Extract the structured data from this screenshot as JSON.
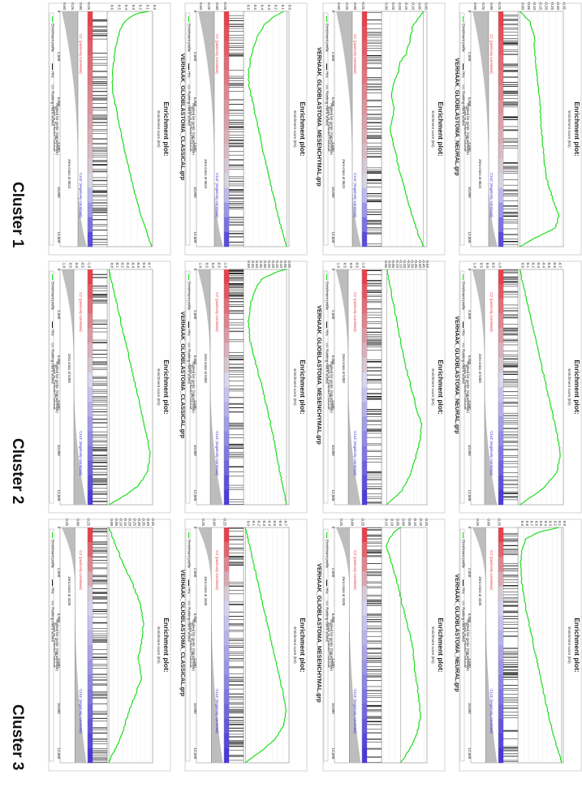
{
  "rows": [
    {
      "label": "Cluster 1"
    },
    {
      "label": "Cluster 2"
    },
    {
      "label": "Cluster 3"
    }
  ],
  "common": {
    "title_line1": "Enrichment plot:",
    "es_ylabel": "Enrichment score (ES)",
    "rank_ylabel": "Ranked list metric (Signal2Noise)",
    "xlabel": "Rank in Ordered Dataset",
    "legend_profile": "Enrichment profile",
    "legend_hits": "Hits",
    "legend_metric": "Ranking metric scores",
    "pos_label_c1": "'C1' (positively correlated)",
    "neg_label_c1": "'C1s2' (negatively correlated)",
    "pos_label_c2": "'C2' (positively correlated)",
    "neg_label_c2": "'C1s3' (negatively correlated)",
    "pos_label_c3": "'C3' (positively correlated)",
    "neg_label_c3": "'C1s3' (negatively correlated)",
    "xticks_c1": [
      "0",
      "2,500",
      "5,000",
      "7,500",
      "10,000",
      "12,500"
    ],
    "xticks_c2": [
      "0",
      "2,500",
      "5,000",
      "7,500",
      "10,000",
      "12,500"
    ],
    "xticks_c3": [
      "0",
      "2,500",
      "5,000",
      "7,500",
      "10,000",
      "12,500"
    ],
    "colors": {
      "curve": "#22dd22",
      "pos": "#e8404a",
      "neg": "#3a2fd8",
      "metric_fill": "#bdbdbd"
    }
  },
  "chart_data": [
    {
      "type": "line",
      "row": 0,
      "col": 0,
      "title": "VERHAAK_GLIOBLASTOMA_CLASSICAL.grp",
      "zero_cross": "Zero cross at 8623",
      "es_ticks": [
        "0.0",
        "0.1",
        "0.2",
        "0.3",
        "0.4",
        "0.5",
        "0.6"
      ],
      "es_range": [
        0,
        0.62
      ],
      "es_points": [
        [
          0,
          0.05
        ],
        [
          0.01,
          0.22
        ],
        [
          0.04,
          0.38
        ],
        [
          0.08,
          0.45
        ],
        [
          0.15,
          0.51
        ],
        [
          0.25,
          0.55
        ],
        [
          0.33,
          0.56
        ],
        [
          0.45,
          0.48
        ],
        [
          0.6,
          0.38
        ],
        [
          0.75,
          0.26
        ],
        [
          0.88,
          0.14
        ],
        [
          1,
          0
        ]
      ],
      "rank_ticks": [
        "-0.25",
        "0.00",
        "0.25",
        "0.50"
      ],
      "rank_range": [
        -0.3,
        0.55
      ],
      "zero_frac": 0.69
    },
    {
      "type": "line",
      "row": 0,
      "col": 1,
      "title": "VERHAAK_GLIOBLASTOMA_MESENCHYMAL.grp",
      "zero_cross": "Zero cross at 8623",
      "es_ticks": [
        "0.0",
        "0.1",
        "0.2",
        "0.3",
        "0.4",
        "0.5",
        "0.6"
      ],
      "es_range": [
        -0.02,
        0.62
      ],
      "es_points": [
        [
          0,
          0.05
        ],
        [
          0.02,
          0.18
        ],
        [
          0.06,
          0.34
        ],
        [
          0.12,
          0.45
        ],
        [
          0.2,
          0.53
        ],
        [
          0.26,
          0.56
        ],
        [
          0.32,
          0.55
        ],
        [
          0.45,
          0.45
        ],
        [
          0.6,
          0.34
        ],
        [
          0.78,
          0.2
        ],
        [
          0.9,
          0.1
        ],
        [
          1,
          0
        ]
      ],
      "rank_ticks": [
        "-0.25",
        "0.00",
        "0.25",
        "0.50"
      ],
      "rank_range": [
        -0.3,
        0.55
      ],
      "zero_frac": 0.69
    },
    {
      "type": "line",
      "row": 0,
      "col": 2,
      "title": "VERHAAK_GLIOBLASTOMA_NEURAL.grp",
      "zero_cross": "Zero cross at 8623",
      "es_ticks": [
        "0.00",
        "0.05",
        "0.10",
        "0.15",
        "0.20",
        "0.25",
        "0.30"
      ],
      "es_range": [
        -0.02,
        0.31
      ],
      "es_points": [
        [
          0,
          0.0
        ],
        [
          0.06,
          0.08
        ],
        [
          0.12,
          0.1
        ],
        [
          0.18,
          0.13
        ],
        [
          0.22,
          0.18
        ],
        [
          0.26,
          0.19
        ],
        [
          0.3,
          0.22
        ],
        [
          0.36,
          0.24
        ],
        [
          0.42,
          0.22
        ],
        [
          0.5,
          0.25
        ],
        [
          0.58,
          0.22
        ],
        [
          0.68,
          0.18
        ],
        [
          0.78,
          0.13
        ],
        [
          0.88,
          0.08
        ],
        [
          0.96,
          0.03
        ],
        [
          1,
          0
        ]
      ],
      "rank_ticks": [
        "-0.25",
        "0.00",
        "0.25",
        "0.50"
      ],
      "rank_range": [
        -0.3,
        0.55
      ],
      "zero_frac": 0.69
    },
    {
      "type": "line",
      "row": 0,
      "col": 3,
      "title": "VERHAAK_GLIOBLASTOMA_PRONEURAL.grp",
      "zero_cross": "Zero cross at 8623",
      "es_ticks": [
        "-0.35",
        "-0.30",
        "-0.25",
        "-0.20",
        "-0.15",
        "-0.10",
        "-0.05",
        "0.00"
      ],
      "es_range": [
        -0.36,
        0.01
      ],
      "es_points": [
        [
          0,
          0.0
        ],
        [
          0.04,
          -0.08
        ],
        [
          0.1,
          -0.12
        ],
        [
          0.2,
          -0.13
        ],
        [
          0.3,
          -0.15
        ],
        [
          0.4,
          -0.17
        ],
        [
          0.5,
          -0.18
        ],
        [
          0.6,
          -0.2
        ],
        [
          0.7,
          -0.22
        ],
        [
          0.8,
          -0.28
        ],
        [
          0.87,
          -0.33
        ],
        [
          0.92,
          -0.3
        ],
        [
          0.97,
          -0.1
        ],
        [
          1,
          0
        ]
      ],
      "rank_ticks": [
        "-0.25",
        "0.00",
        "0.25",
        "0.50"
      ],
      "rank_range": [
        -0.3,
        0.55
      ],
      "zero_frac": 0.69
    },
    {
      "type": "line",
      "row": 1,
      "col": 0,
      "title": "VERHAAK_GLIOBLASTOMA_CLASSICAL.grp",
      "zero_cross": "Zero cross at 5300",
      "es_ticks": [
        "-0.7",
        "-0.6",
        "-0.5",
        "-0.4",
        "-0.3",
        "-0.2",
        "-0.1",
        "0.0"
      ],
      "es_range": [
        -0.8,
        0.02
      ],
      "es_points": [
        [
          0,
          0
        ],
        [
          0.1,
          -0.1
        ],
        [
          0.2,
          -0.2
        ],
        [
          0.3,
          -0.3
        ],
        [
          0.4,
          -0.4
        ],
        [
          0.5,
          -0.5
        ],
        [
          0.6,
          -0.6
        ],
        [
          0.7,
          -0.7
        ],
        [
          0.78,
          -0.77
        ],
        [
          0.86,
          -0.72
        ],
        [
          0.92,
          -0.55
        ],
        [
          0.96,
          -0.3
        ],
        [
          1,
          0
        ]
      ],
      "rank_ticks": [
        "-1.0",
        "-0.5",
        "0.0",
        "0.5",
        "1.0"
      ],
      "rank_range": [
        -1.1,
        1.1
      ],
      "zero_frac": 0.42
    },
    {
      "type": "line",
      "row": 1,
      "col": 1,
      "title": "VERHAAK_GLIOBLASTOMA_MESENCHYMAL.grp",
      "zero_cross": "Zero cross at 5300",
      "es_ticks": [
        "0.00",
        "0.05",
        "0.10",
        "0.15",
        "0.20",
        "0.25",
        "0.30",
        "0.35",
        "0.40",
        "0.45",
        "0.50"
      ],
      "es_range": [
        -0.02,
        0.52
      ],
      "es_points": [
        [
          0,
          0
        ],
        [
          0.01,
          0.12
        ],
        [
          0.04,
          0.3
        ],
        [
          0.08,
          0.38
        ],
        [
          0.14,
          0.44
        ],
        [
          0.22,
          0.47
        ],
        [
          0.3,
          0.45
        ],
        [
          0.4,
          0.38
        ],
        [
          0.5,
          0.3
        ],
        [
          0.62,
          0.22
        ],
        [
          0.75,
          0.14
        ],
        [
          0.88,
          0.07
        ],
        [
          1,
          0
        ]
      ],
      "rank_ticks": [
        "-1.0",
        "-0.5",
        "0.0",
        "0.5",
        "1.0"
      ],
      "rank_range": [
        -1.1,
        1.1
      ],
      "zero_frac": 0.42
    },
    {
      "type": "line",
      "row": 1,
      "col": 2,
      "title": "VERHAAK_GLIOBLASTOMA_NEURAL.grp",
      "zero_cross": "Zero cross at 5300",
      "es_ticks": [
        "-0.50",
        "-0.45",
        "-0.40",
        "-0.35",
        "-0.30",
        "-0.25",
        "-0.20",
        "-0.15",
        "-0.10",
        "-0.05",
        "0.00",
        "0.05"
      ],
      "es_range": [
        -0.52,
        0.06
      ],
      "es_points": [
        [
          0,
          0
        ],
        [
          0.1,
          -0.06
        ],
        [
          0.2,
          -0.12
        ],
        [
          0.3,
          -0.18
        ],
        [
          0.4,
          -0.24
        ],
        [
          0.5,
          -0.32
        ],
        [
          0.6,
          -0.4
        ],
        [
          0.66,
          -0.46
        ],
        [
          0.72,
          -0.44
        ],
        [
          0.8,
          -0.38
        ],
        [
          0.88,
          -0.3
        ],
        [
          0.94,
          -0.2
        ],
        [
          1,
          0
        ]
      ],
      "rank_ticks": [
        "-1.0",
        "-0.5",
        "0.0",
        "0.5",
        "1.0"
      ],
      "rank_range": [
        -1.1,
        1.1
      ],
      "zero_frac": 0.42
    },
    {
      "type": "line",
      "row": 1,
      "col": 3,
      "title": "VERHAAK_GLIOBLASTOMA_PRONEURAL.grp",
      "zero_cross": "Zero cross at 5300",
      "es_ticks": [
        "-0.7",
        "-0.6",
        "-0.5",
        "-0.4",
        "-0.3",
        "-0.2",
        "-0.1",
        "0.0"
      ],
      "es_range": [
        -0.8,
        0.02
      ],
      "es_points": [
        [
          0,
          0
        ],
        [
          0.1,
          -0.1
        ],
        [
          0.2,
          -0.2
        ],
        [
          0.3,
          -0.3
        ],
        [
          0.4,
          -0.4
        ],
        [
          0.5,
          -0.5
        ],
        [
          0.6,
          -0.6
        ],
        [
          0.7,
          -0.7
        ],
        [
          0.78,
          -0.76
        ],
        [
          0.86,
          -0.7
        ],
        [
          0.93,
          -0.45
        ],
        [
          1,
          0
        ]
      ],
      "rank_ticks": [
        "-1.0",
        "-0.5",
        "0.0",
        "0.5",
        "1.0"
      ],
      "rank_range": [
        -1.1,
        1.1
      ],
      "zero_frac": 0.42
    },
    {
      "type": "line",
      "row": 2,
      "col": 0,
      "title": "VERHAAK_GLIOBLASTOMA_CLASSICAL.grp",
      "zero_cross": "Zero cross at 3335",
      "es_ticks": [
        "-0.45",
        "-0.40",
        "-0.35",
        "-0.30",
        "-0.25",
        "-0.20",
        "-0.15",
        "-0.10",
        "-0.05",
        "0.00"
      ],
      "es_range": [
        -0.47,
        0.01
      ],
      "es_points": [
        [
          0,
          0
        ],
        [
          0.08,
          -0.08
        ],
        [
          0.16,
          -0.16
        ],
        [
          0.24,
          -0.26
        ],
        [
          0.32,
          -0.34
        ],
        [
          0.4,
          -0.38
        ],
        [
          0.48,
          -0.36
        ],
        [
          0.56,
          -0.32
        ],
        [
          0.64,
          -0.36
        ],
        [
          0.7,
          -0.3
        ],
        [
          0.78,
          -0.22
        ],
        [
          0.86,
          -0.16
        ],
        [
          0.92,
          -0.1
        ],
        [
          0.97,
          -0.03
        ],
        [
          1,
          0
        ]
      ],
      "rank_ticks": [
        "-0.25",
        "0.00",
        "0.25"
      ],
      "rank_range": [
        -0.3,
        0.35
      ],
      "zero_frac": 0.27
    },
    {
      "type": "line",
      "row": 2,
      "col": 1,
      "title": "VERHAAK_GLIOBLASTOMA_MESENCHYMAL.grp",
      "zero_cross": "Zero cross at 3335",
      "es_ticks": [
        "-0.7",
        "-0.6",
        "-0.5",
        "-0.4",
        "-0.3",
        "-0.2",
        "-0.1",
        "0.0"
      ],
      "es_range": [
        -0.8,
        0.02
      ],
      "es_points": [
        [
          0,
          0
        ],
        [
          0.1,
          -0.1
        ],
        [
          0.2,
          -0.2
        ],
        [
          0.3,
          -0.3
        ],
        [
          0.4,
          -0.4
        ],
        [
          0.5,
          -0.5
        ],
        [
          0.6,
          -0.6
        ],
        [
          0.7,
          -0.7
        ],
        [
          0.78,
          -0.76
        ],
        [
          0.84,
          -0.72
        ],
        [
          0.9,
          -0.55
        ],
        [
          0.95,
          -0.3
        ],
        [
          1,
          0
        ]
      ],
      "rank_ticks": [
        "-0.25",
        "0.00",
        "0.25"
      ],
      "rank_range": [
        -0.3,
        0.35
      ],
      "zero_frac": 0.27
    },
    {
      "type": "line",
      "row": 2,
      "col": 2,
      "title": "VERHAAK_GLIOBLASTOMA_NEURAL.grp",
      "zero_cross": "Zero cross at 3335",
      "es_ticks": [
        "-0.20",
        "-0.15",
        "-0.10",
        "-0.05",
        "0.00",
        "0.05",
        "0.10",
        "0.15"
      ],
      "es_range": [
        -0.22,
        0.16
      ],
      "es_points": [
        [
          0,
          0
        ],
        [
          0.02,
          0.06
        ],
        [
          0.05,
          0.1
        ],
        [
          0.08,
          0.13
        ],
        [
          0.12,
          0.1
        ],
        [
          0.2,
          0.05
        ],
        [
          0.3,
          0.0
        ],
        [
          0.4,
          -0.05
        ],
        [
          0.5,
          -0.1
        ],
        [
          0.6,
          -0.12
        ],
        [
          0.7,
          -0.15
        ],
        [
          0.8,
          -0.17
        ],
        [
          0.88,
          -0.14
        ],
        [
          0.94,
          -0.08
        ],
        [
          1,
          0
        ]
      ],
      "rank_ticks": [
        "-0.25",
        "0.00",
        "0.25"
      ],
      "rank_range": [
        -0.3,
        0.35
      ],
      "zero_frac": 0.27
    },
    {
      "type": "line",
      "row": 2,
      "col": 3,
      "title": "VERHAAK_GLIOBLASTOMA_PRONEURAL.grp",
      "zero_cross": "Zero cross at 3335",
      "es_ticks": [
        "0.0",
        "0.1",
        "0.2",
        "0.3",
        "0.4",
        "0.5",
        "0.6",
        "0.7",
        "0.8",
        "0.9"
      ],
      "es_range": [
        -0.02,
        0.92
      ],
      "es_points": [
        [
          0,
          0.05
        ],
        [
          0.02,
          0.5
        ],
        [
          0.05,
          0.78
        ],
        [
          0.1,
          0.85
        ],
        [
          0.16,
          0.88
        ],
        [
          0.24,
          0.85
        ],
        [
          0.36,
          0.75
        ],
        [
          0.5,
          0.6
        ],
        [
          0.64,
          0.45
        ],
        [
          0.78,
          0.3
        ],
        [
          0.9,
          0.15
        ],
        [
          1,
          0
        ]
      ],
      "rank_ticks": [
        "-0.25",
        "0.00",
        "0.25"
      ],
      "rank_range": [
        -0.3,
        0.35
      ],
      "zero_frac": 0.27
    }
  ]
}
